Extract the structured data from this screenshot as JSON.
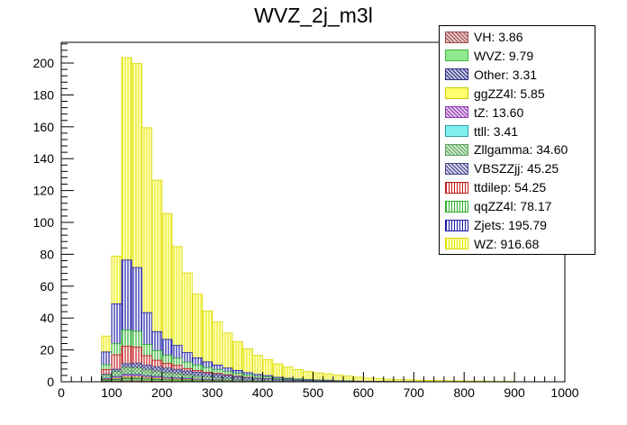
{
  "chart_data": {
    "type": "bar",
    "title": "WVZ_2j_m3l",
    "xlabel": "",
    "ylabel": "",
    "xlim": [
      0,
      1000
    ],
    "ylim": [
      0,
      213
    ],
    "bin_width": 20,
    "stacked": true,
    "xticks": [
      0,
      100,
      200,
      300,
      400,
      500,
      600,
      700,
      800,
      900,
      1000
    ],
    "yticks": [
      0,
      20,
      40,
      60,
      80,
      100,
      120,
      140,
      160,
      180,
      200
    ],
    "legend_position": "top-right",
    "grid": false,
    "x": [
      90,
      110,
      130,
      150,
      170,
      190,
      210,
      230,
      250,
      270,
      290,
      310,
      330,
      350,
      370,
      390,
      410,
      430,
      450,
      470,
      490,
      510,
      530,
      550,
      570,
      590,
      610,
      630,
      650,
      670,
      690,
      710,
      730,
      750,
      770,
      790,
      810,
      830,
      850,
      870,
      890
    ],
    "series": [
      {
        "name": "VH: 3.86",
        "color": "#9a4a4a",
        "pattern": "hatch-x",
        "values": [
          0.3,
          0.4,
          0.6,
          0.6,
          0.5,
          0.4,
          0.3,
          0.2,
          0.2,
          0.1,
          0.1,
          0.1,
          0,
          0,
          0,
          0,
          0,
          0,
          0,
          0,
          0,
          0,
          0,
          0,
          0,
          0,
          0,
          0,
          0,
          0,
          0,
          0,
          0,
          0,
          0,
          0,
          0,
          0,
          0,
          0,
          0
        ]
      },
      {
        "name": "WVZ: 9.79",
        "color": "#3ab53a",
        "pattern": "solid-light",
        "values": [
          0.5,
          0.8,
          1.2,
          1.2,
          1.0,
          0.9,
          0.8,
          0.7,
          0.6,
          0.5,
          0.4,
          0.3,
          0.3,
          0.2,
          0.1,
          0.1,
          0.1,
          0,
          0,
          0,
          0,
          0,
          0,
          0,
          0,
          0,
          0,
          0,
          0,
          0,
          0,
          0,
          0,
          0,
          0,
          0,
          0,
          0,
          0,
          0,
          0
        ]
      },
      {
        "name": "Other: 3.31",
        "color": "#2a2a80",
        "pattern": "hatch-x",
        "values": [
          0.4,
          0.4,
          0.5,
          0.4,
          0.3,
          0.3,
          0.2,
          0.2,
          0.2,
          0.1,
          0.1,
          0.1,
          0.1,
          0,
          0,
          0,
          0,
          0,
          0,
          0,
          0,
          0,
          0,
          0,
          0,
          0,
          0,
          0,
          0,
          0,
          0,
          0,
          0,
          0,
          0,
          0,
          0,
          0,
          0,
          0,
          0
        ]
      },
      {
        "name": "ggZZ4l: 5.85",
        "color": "#c8c800",
        "pattern": "solid-light",
        "values": [
          0.3,
          0.5,
          0.7,
          0.7,
          0.6,
          0.5,
          0.4,
          0.4,
          0.3,
          0.3,
          0.2,
          0.2,
          0.2,
          0.1,
          0.1,
          0.1,
          0.1,
          0,
          0,
          0,
          0,
          0,
          0,
          0,
          0,
          0,
          0,
          0,
          0,
          0,
          0,
          0,
          0,
          0,
          0,
          0,
          0,
          0,
          0,
          0,
          0
        ]
      },
      {
        "name": "tZ: 13.60",
        "color": "#8a3aa8",
        "pattern": "hatch-x",
        "values": [
          0.5,
          1.0,
          1.5,
          1.4,
          1.2,
          1.1,
          0.9,
          0.8,
          0.7,
          0.6,
          0.5,
          0.4,
          0.3,
          0.3,
          0.2,
          0.1,
          0.1,
          0,
          0,
          0,
          0,
          0,
          0,
          0,
          0,
          0,
          0,
          0,
          0,
          0,
          0,
          0,
          0,
          0,
          0,
          0,
          0,
          0,
          0,
          0,
          0
        ]
      },
      {
        "name": "ttll: 3.41",
        "color": "#27a0a8",
        "pattern": "solid-cyan",
        "values": [
          0.2,
          0.3,
          0.4,
          0.4,
          0.3,
          0.3,
          0.2,
          0.2,
          0.2,
          0.1,
          0.1,
          0.1,
          0.1,
          0,
          0,
          0,
          0,
          0,
          0,
          0,
          0,
          0,
          0,
          0,
          0,
          0,
          0,
          0,
          0,
          0,
          0,
          0,
          0,
          0,
          0,
          0,
          0,
          0,
          0,
          0,
          0
        ]
      },
      {
        "name": "Zllgamma: 34.60",
        "color": "#5aa05a",
        "pattern": "hatch-x",
        "values": [
          2.0,
          3.0,
          4.0,
          4.0,
          3.5,
          3.0,
          2.8,
          2.5,
          2.0,
          1.8,
          1.5,
          1.2,
          1.0,
          0.8,
          0.6,
          0.4,
          0.3,
          0.2,
          0.1,
          0,
          0,
          0,
          0,
          0,
          0,
          0,
          0,
          0,
          0,
          0,
          0,
          0,
          0,
          0,
          0,
          0,
          0,
          0,
          0,
          0,
          0
        ]
      },
      {
        "name": "VBSZZjj: 45.25",
        "color": "#4a4a8a",
        "pattern": "hatch-x",
        "values": [
          0.5,
          1.5,
          2.5,
          3.0,
          3.0,
          3.0,
          3.0,
          2.8,
          2.6,
          2.5,
          2.3,
          2.2,
          2.0,
          1.8,
          1.6,
          1.5,
          1.3,
          1.1,
          1.0,
          0.8,
          0.7,
          0.6,
          0.5,
          0.4,
          0.3,
          0.25,
          0.2,
          0.15,
          0.1,
          0.1,
          0.1,
          0,
          0,
          0,
          0,
          0,
          0,
          0,
          0,
          0,
          0
        ]
      },
      {
        "name": "ttdilep: 54.25",
        "color": "#c01818",
        "pattern": "vlines",
        "values": [
          3.0,
          9.0,
          11.0,
          10.0,
          6.0,
          4.0,
          3.0,
          2.5,
          1.5,
          1.0,
          0.8,
          0.6,
          0.4,
          0.3,
          0.2,
          0.1,
          0.1,
          0,
          0,
          0,
          0,
          0,
          0,
          0,
          0,
          0,
          0,
          0,
          0,
          0,
          0,
          0,
          0,
          0,
          0,
          0,
          0,
          0,
          0,
          0,
          0
        ]
      },
      {
        "name": "qqZZ4l: 78.17",
        "color": "#2ab02a",
        "pattern": "vlines",
        "values": [
          3.0,
          7.0,
          10.0,
          10.0,
          7.0,
          6.0,
          5.0,
          4.5,
          4.0,
          3.5,
          3.0,
          2.5,
          2.0,
          1.8,
          1.5,
          1.2,
          1.0,
          0.8,
          0.6,
          0.5,
          0.4,
          0.3,
          0.3,
          0.2,
          0.2,
          0.15,
          0.1,
          0.1,
          0.1,
          0,
          0,
          0,
          0,
          0,
          0,
          0,
          0,
          0,
          0,
          0,
          0
        ]
      },
      {
        "name": "Zjets: 195.79",
        "color": "#1a1aa8",
        "pattern": "vlines",
        "values": [
          8.0,
          25.0,
          44.0,
          40.0,
          20.0,
          12.0,
          10.0,
          8.0,
          6.0,
          4.5,
          3.5,
          2.8,
          2.2,
          1.8,
          1.4,
          1.1,
          0.9,
          0.7,
          0.5,
          0.4,
          0.3,
          0.2,
          0.2,
          0.1,
          0.1,
          0,
          0,
          0,
          0,
          0,
          0,
          0,
          0,
          0,
          0,
          0,
          0,
          0,
          0,
          0,
          0
        ]
      },
      {
        "name": "WZ: 916.68",
        "color": "#d8d800",
        "pattern": "vlines-yellow",
        "values": [
          10.0,
          30.0,
          127.0,
          128.0,
          116.0,
          95.0,
          79.0,
          62.0,
          50.0,
          40.0,
          32.0,
          27.0,
          22.0,
          18.0,
          15.0,
          12.0,
          10.0,
          8.5,
          7.0,
          6.0,
          5.0,
          4.5,
          4.0,
          3.5,
          3.0,
          2.5,
          2.0,
          1.8,
          1.5,
          1.3,
          1.2,
          1.0,
          0.9,
          0.8,
          0.7,
          0.6,
          0.5,
          0.5,
          0.4,
          0.3,
          0.3
        ]
      }
    ]
  }
}
